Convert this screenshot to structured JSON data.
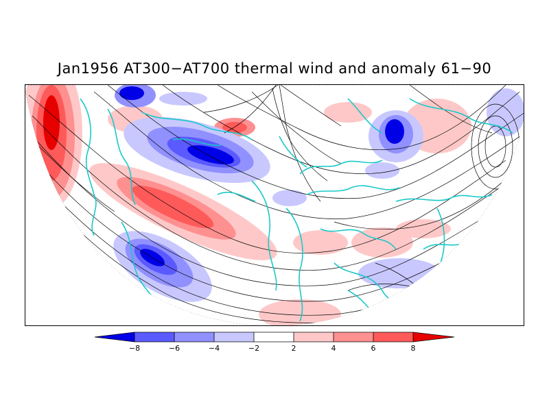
{
  "title": "Jan1956 AT300−AT700 thermal wind and anomaly 61−90",
  "colorbar": {
    "labels": [
      "−8",
      "−6",
      "−4",
      "−2",
      "2",
      "4",
      "6",
      "8"
    ],
    "colors": [
      "#0000e6",
      "#5a5aff",
      "#9090ff",
      "#c8c8ff",
      "#ffffff",
      "#ffc8c8",
      "#ff9090",
      "#ff5a5a",
      "#e60000"
    ]
  },
  "map": {
    "coastline_color": "#19c8c8",
    "streamline_color": "#000000"
  }
}
